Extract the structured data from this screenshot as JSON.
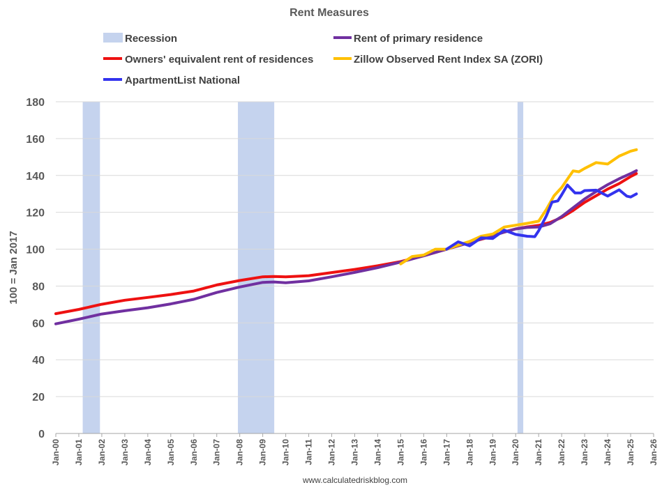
{
  "chart_data": {
    "type": "line",
    "title": "Rent Measures",
    "ylabel": "100 = Jan 2017",
    "xlabel": "",
    "source": "www.calculatedriskblog.com",
    "ylim": [
      0,
      180
    ],
    "yticks": [
      0,
      20,
      40,
      60,
      80,
      100,
      120,
      140,
      160,
      180
    ],
    "xlim": [
      2000.0,
      2026.0
    ],
    "xticks": [
      {
        "x": 2000,
        "label": "Jan-00"
      },
      {
        "x": 2001,
        "label": "Jan-01"
      },
      {
        "x": 2002,
        "label": "Jan-02"
      },
      {
        "x": 2003,
        "label": "Jan-03"
      },
      {
        "x": 2004,
        "label": "Jan-04"
      },
      {
        "x": 2005,
        "label": "Jan-05"
      },
      {
        "x": 2006,
        "label": "Jan-06"
      },
      {
        "x": 2007,
        "label": "Jan-07"
      },
      {
        "x": 2008,
        "label": "Jan-08"
      },
      {
        "x": 2009,
        "label": "Jan-09"
      },
      {
        "x": 2010,
        "label": "Jan-10"
      },
      {
        "x": 2011,
        "label": "Jan-11"
      },
      {
        "x": 2012,
        "label": "Jan-12"
      },
      {
        "x": 2013,
        "label": "Jan-13"
      },
      {
        "x": 2014,
        "label": "Jan-14"
      },
      {
        "x": 2015,
        "label": "Jan-15"
      },
      {
        "x": 2016,
        "label": "Jan-16"
      },
      {
        "x": 2017,
        "label": "Jan-17"
      },
      {
        "x": 2018,
        "label": "Jan-18"
      },
      {
        "x": 2019,
        "label": "Jan-19"
      },
      {
        "x": 2020,
        "label": "Jan-20"
      },
      {
        "x": 2021,
        "label": "Jan-21"
      },
      {
        "x": 2022,
        "label": "Jan-22"
      },
      {
        "x": 2023,
        "label": "Jan-23"
      },
      {
        "x": 2024,
        "label": "Jan-24"
      },
      {
        "x": 2025,
        "label": "Jan-25"
      },
      {
        "x": 2026,
        "label": "Jan-26"
      }
    ],
    "grid": true,
    "legend_position": "top",
    "recessions": {
      "name": "Recession",
      "color": "#c5d3ee",
      "periods": [
        [
          2001.17,
          2001.92
        ],
        [
          2007.92,
          2009.5
        ],
        [
          2020.08,
          2020.33
        ]
      ]
    },
    "series": [
      {
        "name": "Owners' equivalent rent of residences",
        "color": "#ee1111",
        "x": [
          2000,
          2001,
          2002,
          2003,
          2004,
          2005,
          2006,
          2007,
          2008,
          2009,
          2009.5,
          2010,
          2011,
          2012,
          2013,
          2014,
          2015,
          2016,
          2017,
          2018,
          2019,
          2019.5,
          2020,
          2020.5,
          2021,
          2021.5,
          2022,
          2022.5,
          2023,
          2023.5,
          2024,
          2024.5,
          2025,
          2025.25
        ],
        "y": [
          65,
          67.3,
          70.1,
          72.3,
          73.8,
          75.4,
          77.3,
          80.6,
          83.0,
          85.0,
          85.2,
          85.0,
          85.6,
          87.3,
          89.0,
          91.0,
          93.3,
          96.4,
          100.0,
          103.6,
          107.1,
          109.4,
          111.0,
          112.1,
          112.9,
          114.5,
          117.2,
          121.0,
          125.4,
          129.0,
          132.6,
          135.6,
          139.4,
          141.0
        ]
      },
      {
        "name": "Rent of primary residence",
        "color": "#7030a0",
        "x": [
          2000,
          2001,
          2002,
          2003,
          2004,
          2005,
          2006,
          2007,
          2008,
          2009,
          2009.5,
          2010,
          2011,
          2012,
          2013,
          2014,
          2015,
          2016,
          2017,
          2018,
          2019,
          2020,
          2020.5,
          2021,
          2021.5,
          2022,
          2022.5,
          2023,
          2023.5,
          2024,
          2024.5,
          2025,
          2025.25
        ],
        "y": [
          59.5,
          62.0,
          64.8,
          66.6,
          68.2,
          70.3,
          72.8,
          76.5,
          79.5,
          82.0,
          82.2,
          81.8,
          82.8,
          85.0,
          87.4,
          90.0,
          93.0,
          96.4,
          100.0,
          103.6,
          107.4,
          111.0,
          111.8,
          112.0,
          113.8,
          117.7,
          122.5,
          127.3,
          131.3,
          135.0,
          138.2,
          141.0,
          142.6
        ]
      },
      {
        "name": "Zillow Observed Rent Index SA (ZORI)",
        "color": "#ffc000",
        "x": [
          2015,
          2015.5,
          2016,
          2016.5,
          2017,
          2017.5,
          2018,
          2018.5,
          2019,
          2019.5,
          2020,
          2020.5,
          2021,
          2021.33,
          2021.67,
          2022,
          2022.25,
          2022.5,
          2022.75,
          2023,
          2023.5,
          2024,
          2024.5,
          2025,
          2025.25
        ],
        "y": [
          92.0,
          96.0,
          96.8,
          100.0,
          100.0,
          102.2,
          104.2,
          107.0,
          108.2,
          112.0,
          113.0,
          114.0,
          115.2,
          121.5,
          129.0,
          133.5,
          138.0,
          142.5,
          142.0,
          143.8,
          147.0,
          146.2,
          150.5,
          153.2,
          154.0
        ]
      },
      {
        "name": "ApartmentList National",
        "color": "#3333ee",
        "x": [
          2017,
          2017.5,
          2018,
          2018.5,
          2019,
          2019.5,
          2020,
          2020.5,
          2020.83,
          2021,
          2021.33,
          2021.58,
          2021.83,
          2022,
          2022.25,
          2022.58,
          2022.83,
          2023,
          2023.5,
          2024,
          2024.5,
          2024.83,
          2025,
          2025.25
        ],
        "y": [
          100.0,
          104.0,
          101.8,
          106.2,
          105.8,
          110.3,
          108.0,
          107.0,
          106.8,
          110.0,
          118.0,
          125.5,
          126.2,
          129.5,
          134.8,
          130.5,
          130.5,
          131.8,
          132.0,
          128.8,
          132.2,
          128.8,
          128.3,
          130.0
        ]
      }
    ]
  }
}
